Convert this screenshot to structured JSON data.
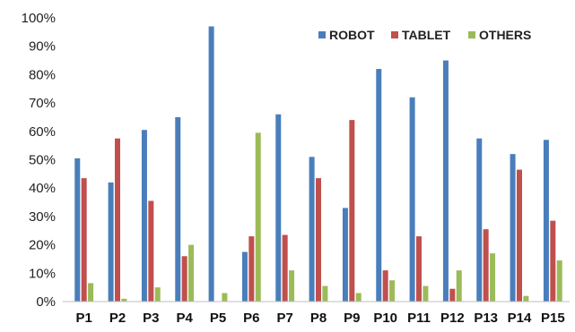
{
  "chart_data": {
    "type": "bar",
    "categories": [
      "P1",
      "P2",
      "P3",
      "P4",
      "P5",
      "P6",
      "P7",
      "P8",
      "P9",
      "P10",
      "P11",
      "P12",
      "P13",
      "P14",
      "P15"
    ],
    "series": [
      {
        "name": "ROBOT",
        "color": "#4a7ebb",
        "values": [
          50.5,
          42,
          60.5,
          65,
          97,
          17.5,
          66,
          51,
          33,
          82,
          72,
          85,
          57.5,
          52,
          57
        ]
      },
      {
        "name": "TABLET",
        "color": "#c0504d",
        "values": [
          43.5,
          57.5,
          35.5,
          16,
          0,
          23,
          23.5,
          43.5,
          64,
          11,
          23,
          4.5,
          25.5,
          46.5,
          28.5
        ]
      },
      {
        "name": "OTHERS",
        "color": "#9bbb59",
        "values": [
          6.5,
          1,
          5,
          20,
          3,
          59.5,
          11,
          5.5,
          3,
          7.5,
          5.5,
          11,
          17,
          2,
          14.5
        ]
      }
    ],
    "y_ticks": [
      "0%",
      "10%",
      "20%",
      "30%",
      "40%",
      "50%",
      "60%",
      "70%",
      "80%",
      "90%",
      "100%"
    ],
    "ylim": [
      0,
      100
    ],
    "grid": false,
    "legend_position": "top-right"
  }
}
